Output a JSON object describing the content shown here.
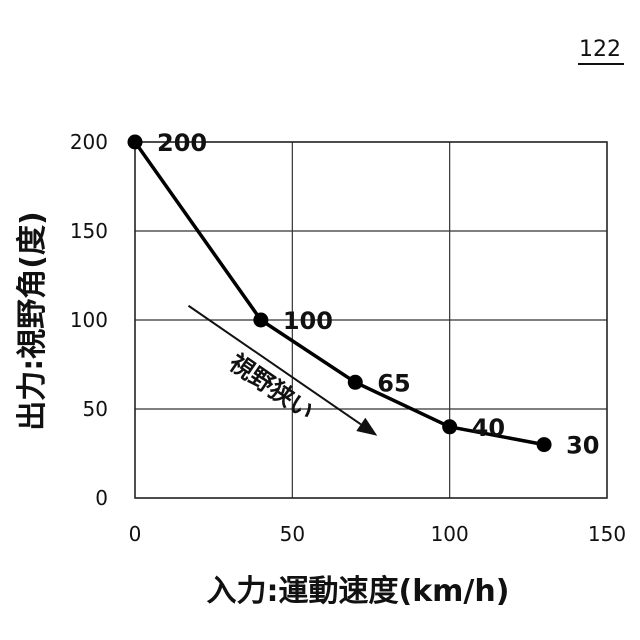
{
  "figure_number": "122",
  "chart_data": {
    "type": "line",
    "x": [
      0,
      40,
      70,
      100,
      130
    ],
    "values": [
      200,
      100,
      65,
      40,
      30
    ],
    "data_labels": [
      "200",
      "100",
      "65",
      "40",
      "30"
    ],
    "xlabel": "入力:運動速度(km/h)",
    "ylabel": "出力:視野角(度)",
    "xlim": [
      0,
      150
    ],
    "ylim": [
      0,
      200
    ],
    "xticks": [
      0,
      50,
      100,
      150
    ],
    "yticks": [
      0,
      50,
      100,
      150,
      200
    ],
    "xtick_labels": [
      "0",
      "50",
      "100",
      "150"
    ],
    "ytick_labels": [
      "0",
      "50",
      "100",
      "150",
      "200"
    ],
    "grid": true,
    "line_color": "#000000",
    "annotation": {
      "text": "視野狭い",
      "arrow_from": [
        17,
        108
      ],
      "arrow_to": [
        77,
        35
      ]
    }
  }
}
